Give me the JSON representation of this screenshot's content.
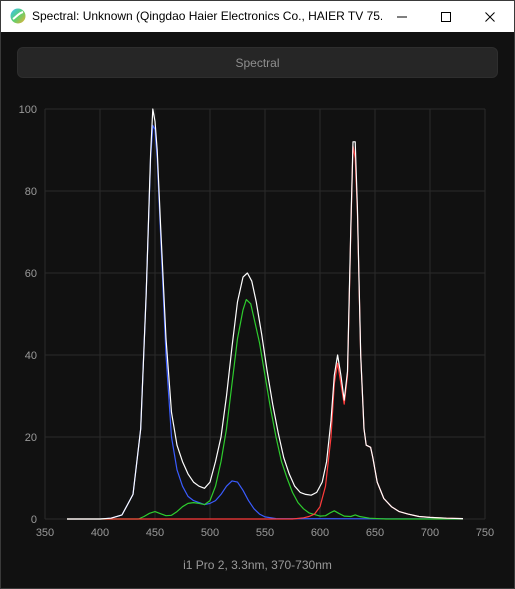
{
  "window": {
    "title": "Spectral: Unknown (Qingdao Haier Electronics Co., HAIER TV 75...",
    "minimize_icon": "minimize-icon",
    "maximize_icon": "maximize-icon",
    "close_icon": "close-icon",
    "app_icon": "spectral-app-icon"
  },
  "toolbar": {
    "mode_label": "Spectral"
  },
  "caption": "i1 Pro 2, 3.3nm, 370-730nm",
  "colors": {
    "background": "#111111",
    "grid": "#2a2a2a",
    "axis_text": "#9a9a9a",
    "total": "#ffffff",
    "red": "#ff3b3b",
    "green": "#2ecc2e",
    "blue": "#3a5cff"
  },
  "chart_data": {
    "type": "line",
    "xlim": [
      350,
      750
    ],
    "ylim": [
      0,
      100
    ],
    "x_ticks": [
      "350",
      "400",
      "450",
      "500",
      "550",
      "600",
      "650",
      "700",
      "750"
    ],
    "y_ticks": [
      "0",
      "20",
      "40",
      "60",
      "80",
      "100"
    ],
    "grid": true,
    "series": [
      {
        "color": "#3a5cff",
        "points": [
          [
            370,
            0
          ],
          [
            400,
            0
          ],
          [
            410,
            0.2
          ],
          [
            420,
            1
          ],
          [
            430,
            6
          ],
          [
            437,
            22
          ],
          [
            442,
            55
          ],
          [
            446,
            88
          ],
          [
            448,
            96
          ],
          [
            450,
            95
          ],
          [
            452,
            88
          ],
          [
            455,
            70
          ],
          [
            460,
            40
          ],
          [
            465,
            20
          ],
          [
            470,
            12
          ],
          [
            475,
            8
          ],
          [
            480,
            5.5
          ],
          [
            485,
            4.5
          ],
          [
            490,
            4
          ],
          [
            495,
            3.5
          ],
          [
            500,
            3.8
          ],
          [
            505,
            4.5
          ],
          [
            510,
            6
          ],
          [
            515,
            8
          ],
          [
            520,
            9.3
          ],
          [
            525,
            9
          ],
          [
            530,
            7
          ],
          [
            535,
            4.5
          ],
          [
            540,
            2.5
          ],
          [
            545,
            1.2
          ],
          [
            550,
            0.5
          ],
          [
            560,
            0.1
          ],
          [
            730,
            0
          ]
        ]
      },
      {
        "color": "#2ecc2e",
        "points": [
          [
            370,
            0
          ],
          [
            435,
            0
          ],
          [
            440,
            0.6
          ],
          [
            445,
            1.4
          ],
          [
            450,
            1.8
          ],
          [
            455,
            1.3
          ],
          [
            460,
            0.8
          ],
          [
            465,
            0.9
          ],
          [
            470,
            1.8
          ],
          [
            475,
            3
          ],
          [
            480,
            3.8
          ],
          [
            485,
            4
          ],
          [
            490,
            3.8
          ],
          [
            495,
            3.5
          ],
          [
            500,
            4.5
          ],
          [
            505,
            8
          ],
          [
            510,
            14
          ],
          [
            515,
            22
          ],
          [
            520,
            33
          ],
          [
            525,
            44
          ],
          [
            530,
            51
          ],
          [
            533,
            53.5
          ],
          [
            537,
            52.5
          ],
          [
            540,
            49
          ],
          [
            545,
            43
          ],
          [
            550,
            35
          ],
          [
            555,
            27
          ],
          [
            560,
            20
          ],
          [
            565,
            14
          ],
          [
            570,
            10
          ],
          [
            575,
            6.5
          ],
          [
            580,
            4
          ],
          [
            585,
            2.5
          ],
          [
            590,
            1.5
          ],
          [
            600,
            0.7
          ],
          [
            605,
            0.8
          ],
          [
            610,
            1.6
          ],
          [
            613,
            2
          ],
          [
            617,
            1.4
          ],
          [
            622,
            0.7
          ],
          [
            628,
            0.6
          ],
          [
            632,
            1
          ],
          [
            636,
            0.6
          ],
          [
            645,
            0.2
          ],
          [
            660,
            0
          ],
          [
            730,
            0
          ]
        ]
      },
      {
        "color": "#ff3b3b",
        "points": [
          [
            370,
            0
          ],
          [
            575,
            0
          ],
          [
            585,
            0.3
          ],
          [
            590,
            0.6
          ],
          [
            595,
            1.2
          ],
          [
            600,
            3
          ],
          [
            605,
            8
          ],
          [
            610,
            20
          ],
          [
            613,
            33
          ],
          [
            616,
            38
          ],
          [
            619,
            33
          ],
          [
            622,
            28
          ],
          [
            625,
            35
          ],
          [
            628,
            70
          ],
          [
            630,
            91
          ],
          [
            632,
            88
          ],
          [
            634,
            75
          ],
          [
            637,
            40
          ],
          [
            640,
            22
          ],
          [
            642,
            18
          ],
          [
            646,
            17.5
          ],
          [
            648,
            15
          ],
          [
            652,
            9
          ],
          [
            658,
            5
          ],
          [
            665,
            3
          ],
          [
            672,
            1.8
          ],
          [
            680,
            1.2
          ],
          [
            690,
            0.6
          ],
          [
            700,
            0.4
          ],
          [
            715,
            0.2
          ],
          [
            730,
            0.1
          ]
        ]
      },
      {
        "color": "#ffffff",
        "points": [
          [
            370,
            0
          ],
          [
            400,
            0
          ],
          [
            410,
            0.2
          ],
          [
            420,
            1
          ],
          [
            430,
            6
          ],
          [
            437,
            22
          ],
          [
            442,
            55
          ],
          [
            446,
            89
          ],
          [
            448,
            100
          ],
          [
            450,
            97
          ],
          [
            452,
            90
          ],
          [
            455,
            72
          ],
          [
            460,
            44
          ],
          [
            465,
            26
          ],
          [
            470,
            18
          ],
          [
            475,
            14
          ],
          [
            480,
            11
          ],
          [
            485,
            9
          ],
          [
            490,
            8
          ],
          [
            495,
            7.5
          ],
          [
            500,
            9
          ],
          [
            505,
            14
          ],
          [
            510,
            20
          ],
          [
            515,
            30
          ],
          [
            520,
            42
          ],
          [
            525,
            53
          ],
          [
            530,
            59
          ],
          [
            534,
            60
          ],
          [
            538,
            58
          ],
          [
            542,
            53
          ],
          [
            547,
            45
          ],
          [
            552,
            36
          ],
          [
            557,
            28
          ],
          [
            562,
            21
          ],
          [
            567,
            15
          ],
          [
            572,
            11
          ],
          [
            577,
            8
          ],
          [
            582,
            6.5
          ],
          [
            587,
            6
          ],
          [
            592,
            5.8
          ],
          [
            597,
            6.5
          ],
          [
            602,
            9
          ],
          [
            606,
            14
          ],
          [
            610,
            24
          ],
          [
            613,
            35
          ],
          [
            616,
            40
          ],
          [
            619,
            35
          ],
          [
            622,
            29
          ],
          [
            625,
            36
          ],
          [
            628,
            71
          ],
          [
            630,
            92
          ],
          [
            632,
            92
          ],
          [
            634,
            76
          ],
          [
            637,
            40
          ],
          [
            640,
            22
          ],
          [
            642,
            18
          ],
          [
            646,
            17.5
          ],
          [
            648,
            15
          ],
          [
            652,
            9
          ],
          [
            658,
            5
          ],
          [
            665,
            3
          ],
          [
            672,
            1.8
          ],
          [
            680,
            1.2
          ],
          [
            690,
            0.6
          ],
          [
            700,
            0.4
          ],
          [
            715,
            0.2
          ],
          [
            730,
            0.1
          ]
        ]
      }
    ]
  }
}
